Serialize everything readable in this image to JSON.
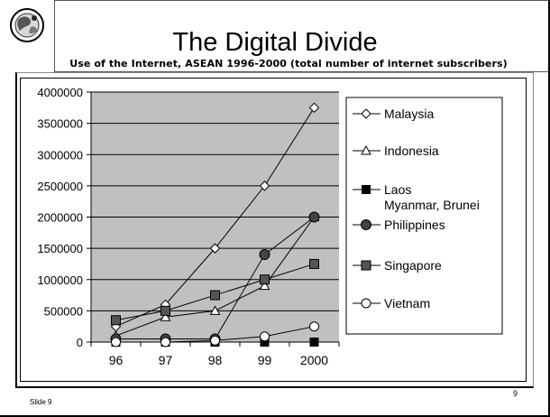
{
  "slide": {
    "title": "The Digital Divide",
    "subtitle": "Use of the Internet, ASEAN 1996-2000 (total number of internet subscribers)",
    "footer_label": "Slide 9",
    "page_number": "9",
    "logo_icon": "globe-emblem-icon"
  },
  "chart_data": {
    "type": "line",
    "title": "",
    "xlabel": "",
    "ylabel": "",
    "categories": [
      "96",
      "97",
      "98",
      "99",
      "2000"
    ],
    "ylim": [
      0,
      4000000
    ],
    "yticks": [
      "0",
      "500000",
      "1000000",
      "1500000",
      "2000000",
      "2500000",
      "3000000",
      "3500000",
      "4000000"
    ],
    "grid": true,
    "plot_background": "#c0c0c0",
    "legend_position": "right",
    "series": [
      {
        "name": "Malaysia",
        "marker": "diamond-open",
        "values": [
          250000,
          600000,
          1500000,
          2500000,
          3750000
        ]
      },
      {
        "name": "Indonesia",
        "marker": "triangle-open",
        "values": [
          100000,
          400000,
          500000,
          900000,
          2000000
        ]
      },
      {
        "name": "Laos Myanmar, Brunei",
        "legend_lines": [
          "Laos",
          "Myanmar, Brunei"
        ],
        "marker": "square-filled-black",
        "values": [
          0,
          0,
          0,
          0,
          0
        ]
      },
      {
        "name": "Philippines",
        "marker": "circle-filled-gray",
        "values": [
          50000,
          50000,
          50000,
          1400000,
          2000000
        ]
      },
      {
        "name": "Singapore",
        "marker": "square-filled-gray",
        "values": [
          350000,
          500000,
          750000,
          1000000,
          1250000
        ]
      },
      {
        "name": "Vietnam",
        "marker": "circle-open",
        "values": [
          0,
          0,
          25000,
          90000,
          250000
        ]
      }
    ]
  }
}
